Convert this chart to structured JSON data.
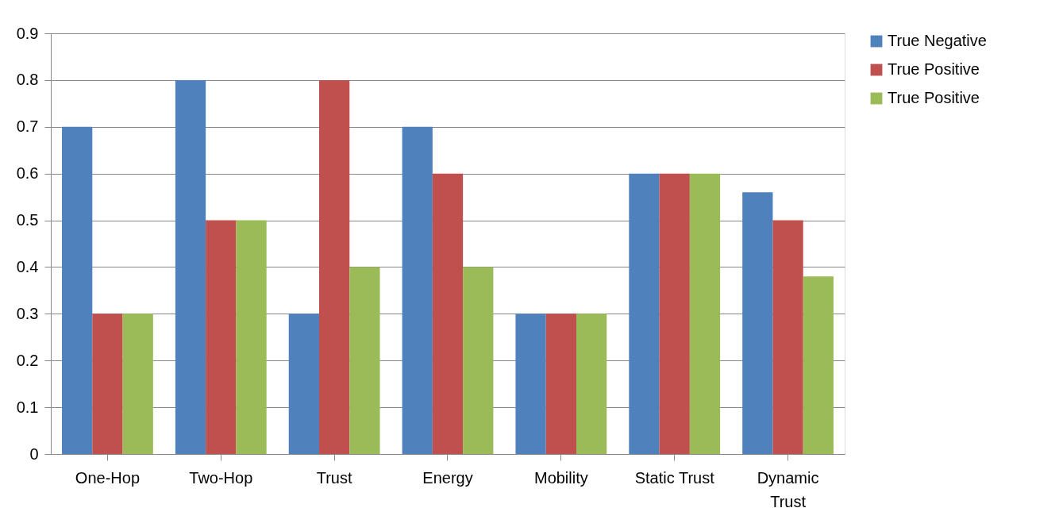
{
  "chart_data": {
    "type": "bar",
    "categories": [
      "One-Hop",
      "Two-Hop",
      "Trust",
      "Energy",
      "Mobility",
      "Static Trust",
      "Dynamic Trust"
    ],
    "series": [
      {
        "name": "True Negative",
        "color": "#4f81bd",
        "values": [
          0.7,
          0.8,
          0.3,
          0.7,
          0.3,
          0.6,
          0.56
        ]
      },
      {
        "name": "True Positive",
        "color": "#c0504d",
        "values": [
          0.3,
          0.5,
          0.8,
          0.6,
          0.3,
          0.6,
          0.5
        ]
      },
      {
        "name": "True Positive",
        "color": "#9bbb59",
        "values": [
          0.3,
          0.5,
          0.4,
          0.4,
          0.3,
          0.6,
          0.38
        ]
      }
    ],
    "ylim": [
      0,
      0.9
    ],
    "yticks": [
      0,
      0.1,
      0.2,
      0.3,
      0.4,
      0.5,
      0.6,
      0.7,
      0.8,
      0.9
    ],
    "grid": "y",
    "legend": "right"
  }
}
